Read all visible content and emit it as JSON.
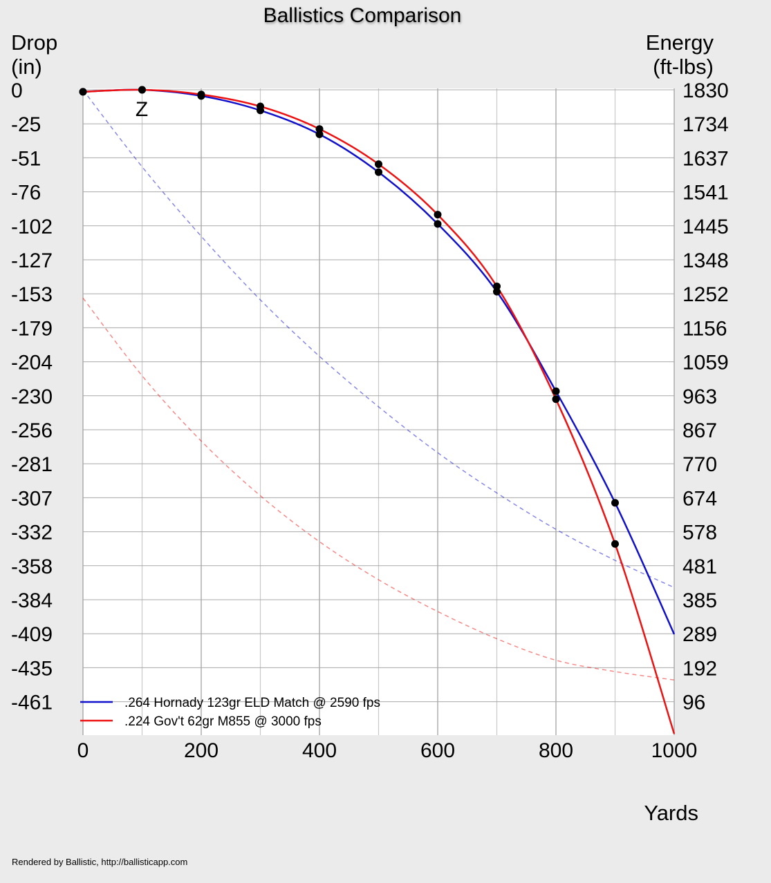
{
  "chart_data": {
    "type": "line",
    "title": "Ballistics Comparison",
    "ylabel_left": [
      "Drop",
      "(in)"
    ],
    "ylabel_right": [
      "Energy",
      "(ft-lbs)"
    ],
    "xlabel": "Yards",
    "xlim": [
      0,
      1000
    ],
    "ylim_left": [
      -480,
      0
    ],
    "ylim_right": [
      0,
      1830
    ],
    "x_ticks": [
      0,
      200,
      400,
      600,
      800,
      1000
    ],
    "x_grid_step": 100,
    "left_ticks": [
      0,
      -25,
      -51,
      -76,
      -102,
      -127,
      -153,
      -179,
      -204,
      -230,
      -256,
      -281,
      -307,
      -332,
      -358,
      -384,
      -409,
      -435,
      -461
    ],
    "right_ticks": [
      1830,
      1734,
      1637,
      1541,
      1445,
      1348,
      1252,
      1156,
      1059,
      963,
      867,
      770,
      674,
      578,
      481,
      385,
      289,
      192,
      96
    ],
    "grid": true,
    "zero_marker": {
      "label": "Z",
      "x": 100
    },
    "legend_position": "bottom-left",
    "series": [
      {
        "name": ".264 Hornady 123gr ELD Match @ 2590 fps",
        "color": "#1010cc",
        "drop": {
          "x": [
            0,
            100,
            200,
            300,
            400,
            500,
            600,
            700,
            800,
            900,
            1000
          ],
          "y": [
            -1.5,
            0,
            -4.6,
            -15.5,
            -33.5,
            -62,
            -101,
            -152,
            -227,
            -311,
            -410
          ]
        },
        "energy": {
          "x": [
            0,
            100,
            200,
            300,
            400,
            500,
            600,
            700,
            800,
            900,
            1000
          ],
          "y": [
            1830,
            1612,
            1415,
            1235,
            1075,
            932,
            802,
            688,
            585,
            497,
            420
          ]
        }
      },
      {
        "name": ".224 Gov't 62gr M855 @ 3000 fps",
        "color": "#ee1111",
        "drop": {
          "x": [
            0,
            100,
            200,
            300,
            400,
            500,
            600,
            700,
            800,
            900,
            1000
          ],
          "y": [
            -1.5,
            0,
            -3.5,
            -12.5,
            -29.5,
            -56,
            -94,
            -148,
            -233,
            -342,
            -485
          ]
        },
        "energy": {
          "x": [
            0,
            100,
            200,
            300,
            400,
            500,
            600,
            700,
            800,
            900,
            1000
          ],
          "y": [
            1240,
            1020,
            835,
            680,
            550,
            442,
            352,
            275,
            214,
            182,
            158
          ]
        }
      }
    ]
  },
  "footer": {
    "credit": "Rendered by Ballistic, http://ballisticapp.com"
  }
}
